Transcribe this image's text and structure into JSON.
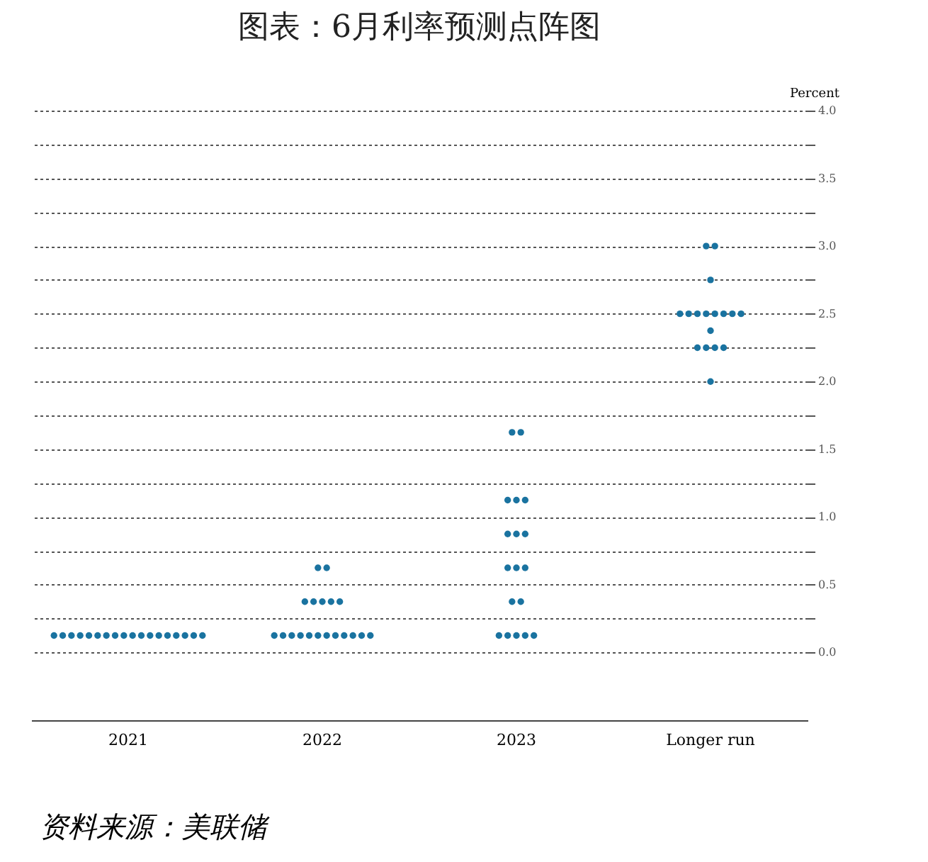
{
  "chart_data": {
    "type": "scatter",
    "title": "图表：6月利率预测点阵图",
    "ylabel": "Percent",
    "annotations": [
      "资料来源：美联储"
    ],
    "categories": [
      "2021",
      "2022",
      "2023",
      "Longer run"
    ],
    "ylim": [
      -0.5,
      4.0
    ],
    "yticks": [
      {
        "value": 0,
        "label": "0.0"
      },
      {
        "value": 0.25,
        "label": null
      },
      {
        "value": 0.5,
        "label": "0.5"
      },
      {
        "value": 0.75,
        "label": null
      },
      {
        "value": 1,
        "label": "1.0"
      },
      {
        "value": 1.25,
        "label": null
      },
      {
        "value": 1.5,
        "label": "1.5"
      },
      {
        "value": 1.75,
        "label": null
      },
      {
        "value": 2,
        "label": "2.0"
      },
      {
        "value": 2.25,
        "label": null
      },
      {
        "value": 2.5,
        "label": "2.5"
      },
      {
        "value": 2.75,
        "label": null
      },
      {
        "value": 3,
        "label": "3.0"
      },
      {
        "value": 3.25,
        "label": null
      },
      {
        "value": 3.5,
        "label": "3.5"
      },
      {
        "value": 3.75,
        "label": null
      },
      {
        "value": 4,
        "label": "4.0"
      }
    ],
    "grid": "y",
    "marker": "circle",
    "series": [
      {
        "color": "#1a73a0",
        "values": [
          0.125,
          0.125,
          0.125,
          2.0
        ]
      },
      {
        "color": "#1a73a0",
        "values": [
          0.125,
          0.125,
          0.125,
          2.25
        ]
      },
      {
        "color": "#1a73a0",
        "values": [
          0.125,
          0.125,
          0.125,
          2.25
        ]
      },
      {
        "color": "#1a73a0",
        "values": [
          0.125,
          0.125,
          0.125,
          2.25
        ]
      },
      {
        "color": "#1a73a0",
        "values": [
          0.125,
          0.125,
          0.125,
          2.25
        ]
      },
      {
        "color": "#1a73a0",
        "values": [
          0.125,
          0.125,
          0.375,
          2.375
        ]
      },
      {
        "color": "#1a73a0",
        "values": [
          0.125,
          0.125,
          0.375,
          2.5
        ]
      },
      {
        "color": "#1a73a0",
        "values": [
          0.125,
          0.125,
          0.625,
          2.5
        ]
      },
      {
        "color": "#1a73a0",
        "values": [
          0.125,
          0.125,
          0.625,
          2.5
        ]
      },
      {
        "color": "#1a73a0",
        "values": [
          0.125,
          0.125,
          0.625,
          2.5
        ]
      },
      {
        "color": "#1a73a0",
        "values": [
          0.125,
          0.125,
          0.875,
          2.5
        ]
      },
      {
        "color": "#1a73a0",
        "values": [
          0.125,
          0.125,
          0.875,
          2.5
        ]
      },
      {
        "color": "#1a73a0",
        "values": [
          0.125,
          0.375,
          0.875,
          2.5
        ]
      },
      {
        "color": "#1a73a0",
        "values": [
          0.125,
          0.375,
          1.125,
          2.5
        ]
      },
      {
        "color": "#1a73a0",
        "values": [
          0.125,
          0.375,
          1.125,
          2.75
        ]
      },
      {
        "color": "#1a73a0",
        "values": [
          0.125,
          0.375,
          1.125,
          3.0
        ]
      },
      {
        "color": "#1a73a0",
        "values": [
          0.125,
          0.375,
          1.625,
          3.0
        ]
      },
      {
        "color": "#1a73a0",
        "values": [
          0.125,
          0.625,
          1.625,
          null
        ]
      },
      {
        "color": "#1a73a0",
        "values": [
          null,
          0.625,
          null,
          null
        ]
      }
    ]
  }
}
